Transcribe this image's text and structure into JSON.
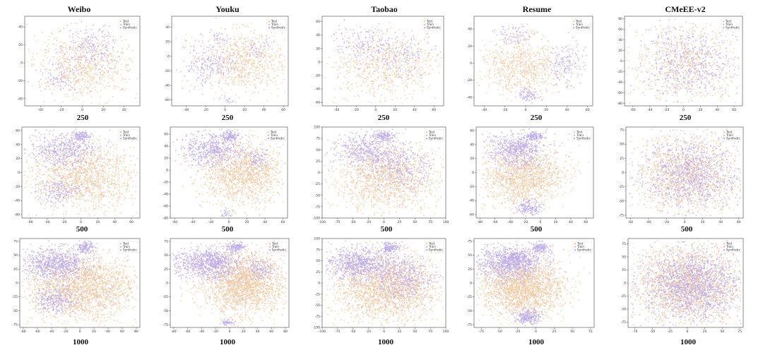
{
  "figure": {
    "columns": [
      "Weibo",
      "Youku",
      "Taobao",
      "Resume",
      "CMeEE-v2"
    ],
    "rows": [
      "250",
      "500",
      "1000"
    ]
  },
  "colors": {
    "Test": "#f2c79b",
    "Train": "#ecb4c4",
    "Synthetic": "#b9a8ea"
  },
  "legend": [
    "Test",
    "Train",
    "Synthetic"
  ],
  "chart_data": [
    {
      "type": "scatter",
      "title": "Weibo",
      "row": "250",
      "xticks": [
        -40,
        -20,
        0,
        20,
        40
      ],
      "yticks": [
        -40,
        -20,
        0,
        20,
        40
      ],
      "xlim": [
        -55,
        55
      ],
      "ylim": [
        -48,
        52
      ]
    },
    {
      "type": "scatter",
      "title": "Youku",
      "row": "250",
      "xticks": [
        -40,
        -20,
        0,
        20,
        40,
        60
      ],
      "yticks": [
        -60,
        -40,
        -20,
        0,
        20,
        40
      ],
      "xlim": [
        -55,
        65
      ],
      "ylim": [
        -68,
        55
      ]
    },
    {
      "type": "scatter",
      "title": "Taobao",
      "row": "250",
      "xticks": [
        -40,
        -20,
        0,
        20,
        40,
        60
      ],
      "yticks": [
        -60,
        -40,
        -20,
        0,
        20,
        40,
        60
      ],
      "xlim": [
        -55,
        70
      ],
      "ylim": [
        -65,
        68
      ]
    },
    {
      "type": "scatter",
      "title": "Resume",
      "row": "250",
      "xticks": [
        -40,
        -20,
        0,
        20,
        40,
        60
      ],
      "yticks": [
        -40,
        -20,
        0,
        20,
        40
      ],
      "xlim": [
        -50,
        65
      ],
      "ylim": [
        -50,
        55
      ]
    },
    {
      "type": "scatter",
      "title": "CMeEE-v2",
      "row": "250",
      "xticks": [
        -60,
        -40,
        -20,
        0,
        20,
        40,
        60
      ],
      "yticks": [
        -80,
        -60,
        -40,
        -20,
        0,
        20,
        40,
        60,
        80
      ],
      "xlim": [
        -70,
        70
      ],
      "ylim": [
        -85,
        85
      ]
    },
    {
      "type": "scatter",
      "title": "Weibo",
      "row": "500",
      "xticks": [
        -60,
        -40,
        -20,
        0,
        20,
        40,
        60
      ],
      "yticks": [
        -60,
        -40,
        -20,
        0,
        20,
        40,
        60
      ],
      "xlim": [
        -70,
        70
      ],
      "ylim": [
        -65,
        65
      ]
    },
    {
      "type": "scatter",
      "title": "Youku",
      "row": "500",
      "xticks": [
        -60,
        -40,
        -20,
        0,
        20,
        40,
        60
      ],
      "yticks": [
        -80,
        -60,
        -40,
        -20,
        0,
        20,
        40,
        60
      ],
      "xlim": [
        -65,
        65
      ],
      "ylim": [
        -80,
        72
      ]
    },
    {
      "type": "scatter",
      "title": "Taobao",
      "row": "500",
      "xticks": [
        -100,
        -75,
        -50,
        -25,
        0,
        25,
        50,
        75,
        100
      ],
      "yticks": [
        -100,
        -75,
        -50,
        -25,
        0,
        25,
        50,
        75,
        100
      ],
      "xlim": [
        -100,
        100
      ],
      "ylim": [
        -100,
        100
      ]
    },
    {
      "type": "scatter",
      "title": "Resume",
      "row": "500",
      "xticks": [
        -80,
        -60,
        -40,
        -20,
        0,
        20,
        40,
        60
      ],
      "yticks": [
        -60,
        -40,
        -20,
        0,
        20,
        40,
        60
      ],
      "xlim": [
        -85,
        70
      ],
      "ylim": [
        -65,
        65
      ]
    },
    {
      "type": "scatter",
      "title": "CMeEE-v2",
      "row": "500",
      "xticks": [
        -60,
        -40,
        -20,
        0,
        20,
        40,
        60
      ],
      "yticks": [
        -75,
        -50,
        -25,
        0,
        25,
        50,
        75
      ],
      "xlim": [
        -65,
        65
      ],
      "ylim": [
        -80,
        80
      ]
    },
    {
      "type": "scatter",
      "title": "Weibo",
      "row": "1000",
      "xticks": [
        -80,
        -60,
        -40,
        -20,
        0,
        20,
        40,
        60,
        80
      ],
      "yticks": [
        -75,
        -50,
        -25,
        0,
        25,
        50,
        75
      ],
      "xlim": [
        -85,
        85
      ],
      "ylim": [
        -80,
        80
      ]
    },
    {
      "type": "scatter",
      "title": "Youku",
      "row": "1000",
      "xticks": [
        -80,
        -60,
        -40,
        -20,
        0,
        20,
        40,
        60,
        80
      ],
      "yticks": [
        -75,
        -50,
        -25,
        0,
        25,
        50,
        75
      ],
      "xlim": [
        -85,
        85
      ],
      "ylim": [
        -80,
        80
      ]
    },
    {
      "type": "scatter",
      "title": "Taobao",
      "row": "1000",
      "xticks": [
        -100,
        -75,
        -50,
        -25,
        0,
        25,
        50,
        75,
        100
      ],
      "yticks": [
        -100,
        -75,
        -50,
        -25,
        0,
        25,
        50,
        75,
        100
      ],
      "xlim": [
        -100,
        100
      ],
      "ylim": [
        -100,
        100
      ]
    },
    {
      "type": "scatter",
      "title": "Resume",
      "row": "1000",
      "xticks": [
        -75,
        -50,
        -25,
        0,
        25,
        50,
        75
      ],
      "yticks": [
        -75,
        -50,
        -25,
        0,
        25,
        50,
        75
      ],
      "xlim": [
        -85,
        80
      ],
      "ylim": [
        -80,
        80
      ]
    },
    {
      "type": "scatter",
      "title": "CMeEE-v2",
      "row": "1000",
      "xticks": [
        -75,
        -50,
        -25,
        0,
        25,
        50,
        75
      ],
      "yticks": [
        -75,
        -50,
        -25,
        0,
        25,
        50,
        75
      ],
      "xlim": [
        -85,
        80
      ],
      "ylim": [
        -85,
        85
      ]
    }
  ]
}
